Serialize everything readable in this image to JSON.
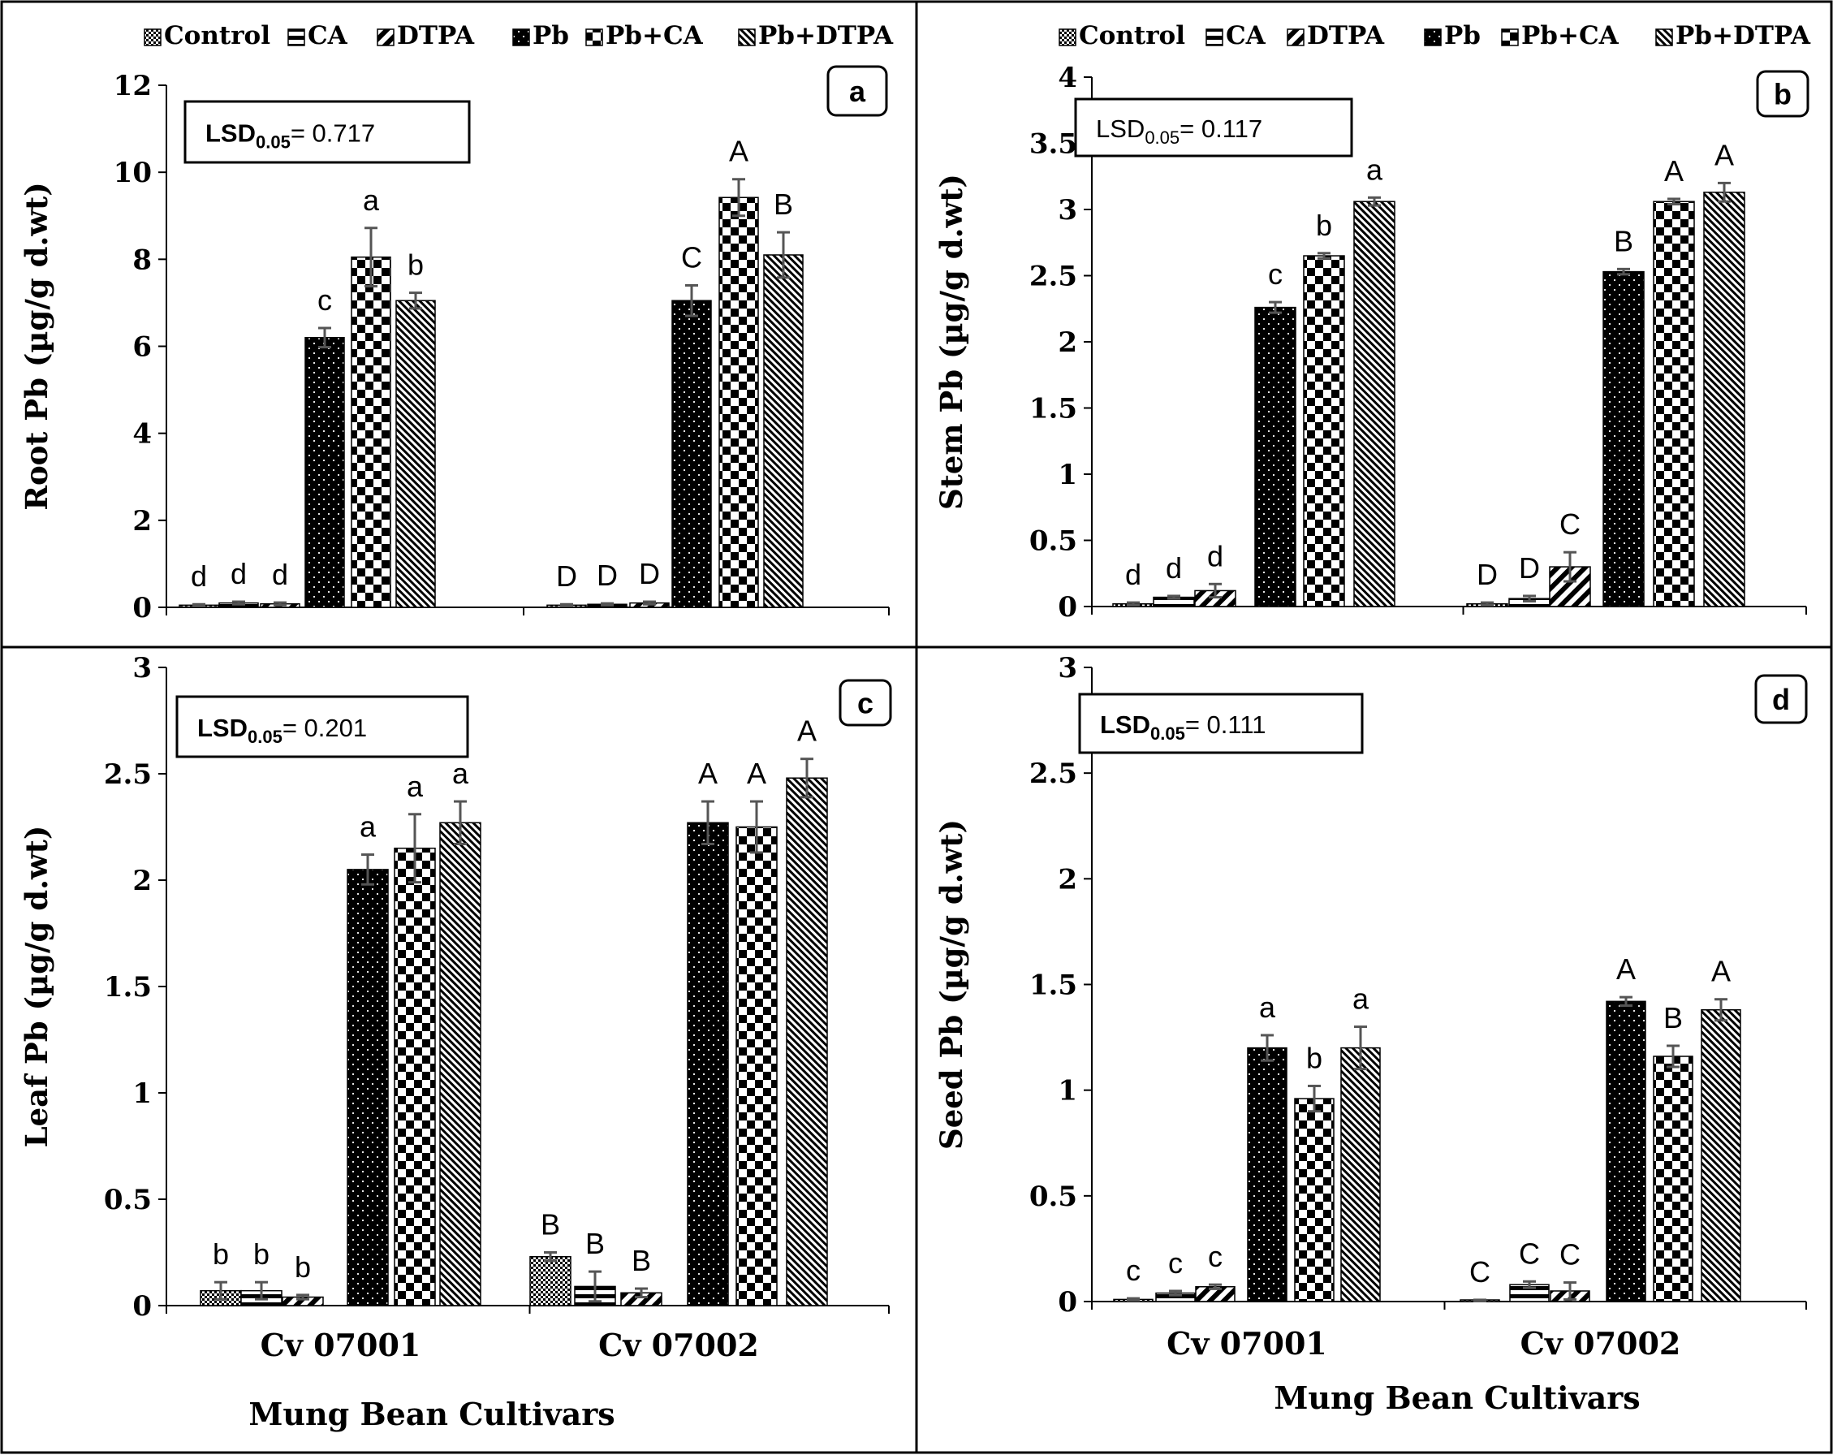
{
  "figure": {
    "xlabel_bottom": "Mung Bean Cultivars"
  },
  "legend": {
    "items": [
      "Control",
      "CA",
      "DTPA",
      "Pb",
      "Pb+CA",
      "Pb+DTPA"
    ]
  },
  "chart_data": [
    {
      "type": "bar",
      "panel": "a",
      "ylabel": "Root Pb (µg/g d.wt)",
      "xlabel": "",
      "lsd_label": "LSD",
      "lsd_sub": "0.05",
      "lsd_value": "= 0.717",
      "categories": [
        "",
        ""
      ],
      "ylim": [
        0,
        12
      ],
      "yticks": [
        0,
        2,
        4,
        6,
        8,
        10,
        12
      ],
      "series": [
        {
          "name": "Control",
          "values": [
            0.05,
            0.05
          ],
          "errors": [
            0.02,
            0.02
          ],
          "letters": [
            "d",
            "D"
          ]
        },
        {
          "name": "CA",
          "values": [
            0.1,
            0.07
          ],
          "errors": [
            0.03,
            0.02
          ],
          "letters": [
            "d",
            "D"
          ]
        },
        {
          "name": "DTPA",
          "values": [
            0.08,
            0.1
          ],
          "errors": [
            0.03,
            0.03
          ],
          "letters": [
            "d",
            "D"
          ]
        },
        {
          "name": "Pb",
          "values": [
            6.2,
            7.05
          ],
          "errors": [
            0.22,
            0.35
          ],
          "letters": [
            "c",
            "C"
          ]
        },
        {
          "name": "Pb+CA",
          "values": [
            8.05,
            9.42
          ],
          "errors": [
            0.67,
            0.42
          ],
          "letters": [
            "a",
            "A"
          ]
        },
        {
          "name": "Pb+DTPA",
          "values": [
            7.05,
            8.1
          ],
          "errors": [
            0.18,
            0.52
          ],
          "letters": [
            "b",
            "B"
          ]
        }
      ]
    },
    {
      "type": "bar",
      "panel": "b",
      "ylabel": "Stem Pb (µg/g d.wt)",
      "xlabel": "",
      "lsd_label": "LSD",
      "lsd_sub": "0.05",
      "lsd_value": "= 0.117",
      "categories": [
        "",
        ""
      ],
      "ylim": [
        0,
        4
      ],
      "yticks": [
        0,
        0.5,
        1,
        1.5,
        2,
        2.5,
        3,
        3.5,
        4
      ],
      "series": [
        {
          "name": "Control",
          "values": [
            0.02,
            0.02
          ],
          "errors": [
            0.01,
            0.01
          ],
          "letters": [
            "d",
            "D"
          ]
        },
        {
          "name": "CA",
          "values": [
            0.07,
            0.06
          ],
          "errors": [
            0.01,
            0.02
          ],
          "letters": [
            "d",
            "D"
          ]
        },
        {
          "name": "DTPA",
          "values": [
            0.12,
            0.3
          ],
          "errors": [
            0.05,
            0.11
          ],
          "letters": [
            "d",
            "C"
          ]
        },
        {
          "name": "Pb",
          "values": [
            2.26,
            2.53
          ],
          "errors": [
            0.04,
            0.02
          ],
          "letters": [
            "c",
            "B"
          ]
        },
        {
          "name": "Pb+CA",
          "values": [
            2.65,
            3.06
          ],
          "errors": [
            0.02,
            0.02
          ],
          "letters": [
            "b",
            "A"
          ]
        },
        {
          "name": "Pb+DTPA",
          "values": [
            3.06,
            3.13
          ],
          "errors": [
            0.03,
            0.07
          ],
          "letters": [
            "a",
            "A"
          ]
        }
      ]
    },
    {
      "type": "bar",
      "panel": "c",
      "ylabel": "Leaf Pb (µg/g d.wt)",
      "xlabel": "Mung Bean Cultivars",
      "lsd_label": "LSD",
      "lsd_sub": "0.05",
      "lsd_value": "= 0.201",
      "categories": [
        "Cv 07001",
        "Cv 07002"
      ],
      "ylim": [
        0,
        3
      ],
      "yticks": [
        0,
        0.5,
        1,
        1.5,
        2,
        2.5,
        3
      ],
      "series": [
        {
          "name": "Control",
          "values": [
            0.07,
            0.23
          ],
          "errors": [
            0.04,
            0.02
          ],
          "letters": [
            "b",
            "B"
          ]
        },
        {
          "name": "CA",
          "values": [
            0.07,
            0.09
          ],
          "errors": [
            0.04,
            0.07
          ],
          "letters": [
            "b",
            "B"
          ]
        },
        {
          "name": "DTPA",
          "values": [
            0.04,
            0.06
          ],
          "errors": [
            0.01,
            0.02
          ],
          "letters": [
            "b",
            "B"
          ]
        },
        {
          "name": "Pb",
          "values": [
            2.05,
            2.27
          ],
          "errors": [
            0.07,
            0.1
          ],
          "letters": [
            "a",
            "A"
          ]
        },
        {
          "name": "Pb+CA",
          "values": [
            2.15,
            2.25
          ],
          "errors": [
            0.16,
            0.12
          ],
          "letters": [
            "a",
            "A"
          ]
        },
        {
          "name": "Pb+DTPA",
          "values": [
            2.27,
            2.48
          ],
          "errors": [
            0.1,
            0.09
          ],
          "letters": [
            "a",
            "A"
          ]
        }
      ]
    },
    {
      "type": "bar",
      "panel": "d",
      "ylabel": "Seed Pb (µg/g d.wt)",
      "xlabel": "Mung Bean Cultivars",
      "lsd_label": "LSD",
      "lsd_sub": "0.05",
      "lsd_value": "= 0.111",
      "categories": [
        "Cv 07001",
        "Cv 07002"
      ],
      "ylim": [
        0,
        3
      ],
      "yticks": [
        0,
        0.5,
        1,
        1.5,
        2,
        2.5,
        3
      ],
      "series": [
        {
          "name": "Control",
          "values": [
            0.01,
            0.005
          ],
          "errors": [
            0.005,
            0.003
          ],
          "letters": [
            "c",
            "C"
          ]
        },
        {
          "name": "CA",
          "values": [
            0.04,
            0.08
          ],
          "errors": [
            0.01,
            0.015
          ],
          "letters": [
            "c",
            "C"
          ]
        },
        {
          "name": "DTPA",
          "values": [
            0.07,
            0.05
          ],
          "errors": [
            0.01,
            0.04
          ],
          "letters": [
            "c",
            "C"
          ]
        },
        {
          "name": "Pb",
          "values": [
            1.2,
            1.42
          ],
          "errors": [
            0.06,
            0.02
          ],
          "letters": [
            "a",
            "A"
          ]
        },
        {
          "name": "Pb+CA",
          "values": [
            0.96,
            1.16
          ],
          "errors": [
            0.06,
            0.05
          ],
          "letters": [
            "b",
            "B"
          ]
        },
        {
          "name": "Pb+DTPA",
          "values": [
            1.2,
            1.38
          ],
          "errors": [
            0.1,
            0.05
          ],
          "letters": [
            "a",
            "A"
          ]
        }
      ]
    }
  ]
}
